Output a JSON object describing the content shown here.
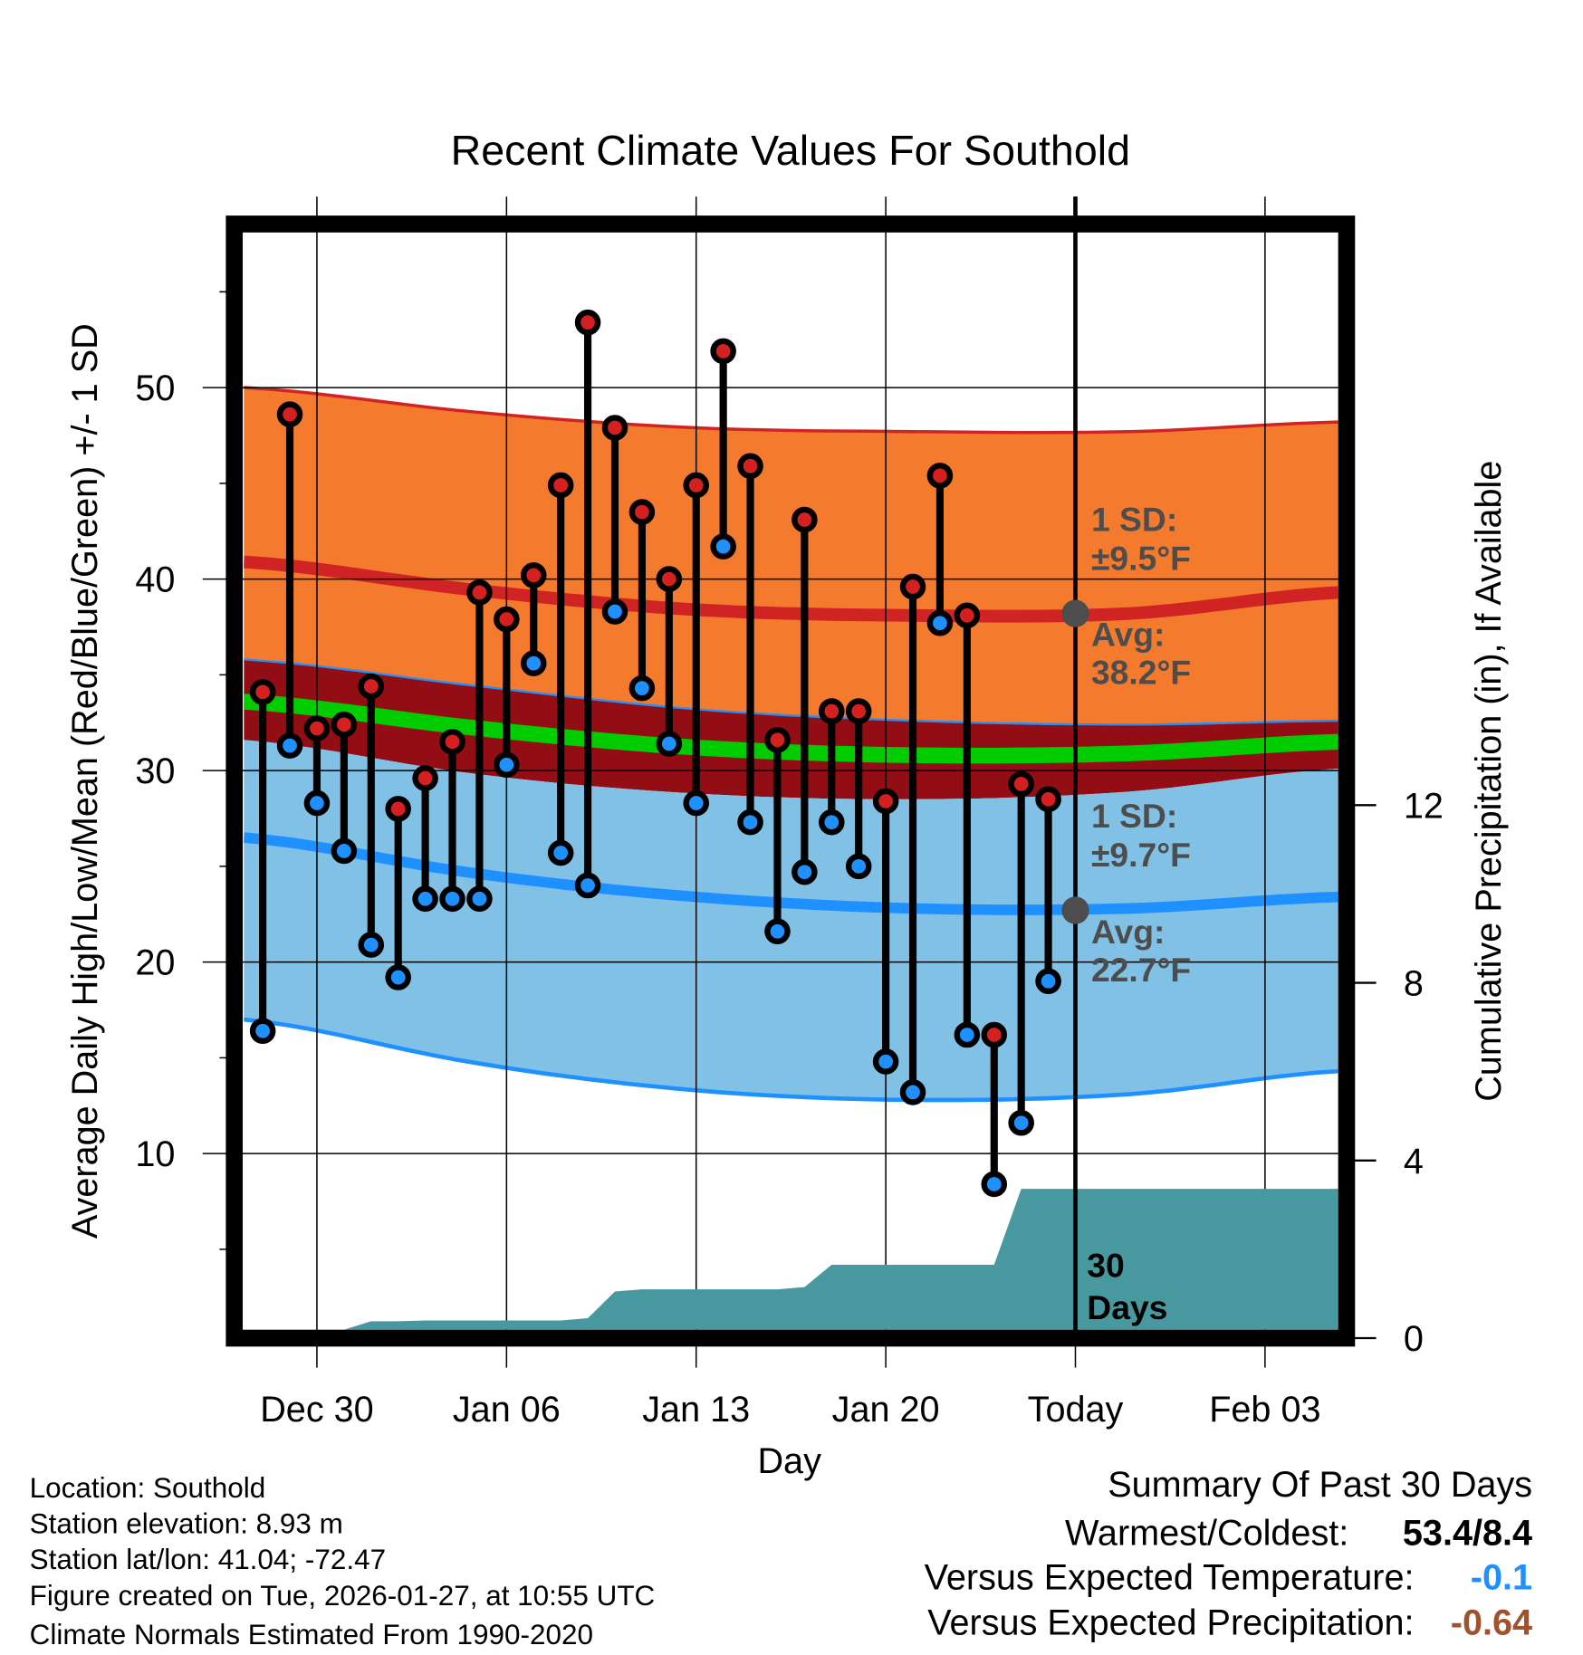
{
  "chart_data": {
    "type": "line",
    "title": "Recent Climate Values For Southold",
    "xlabel": "Day",
    "ylabel": "Average Daily High/Low/Mean (Red/Blue/Green) +/- 1 SD",
    "y2label": "Cumulative Precipitation (in), If Available",
    "ylim": [
      0.8,
      58.1
    ],
    "y2lim": [
      0.19,
      24.9
    ],
    "xlim_days_from_dec30": [
      -2.7,
      37.7
    ],
    "yticks": [
      "10",
      "20",
      "30",
      "40",
      "50"
    ],
    "y2ticks": [
      "0",
      "4",
      "8",
      "12"
    ],
    "xticks": [
      {
        "day": 0,
        "label": "Dec 30"
      },
      {
        "day": 7,
        "label": "Jan 06"
      },
      {
        "day": 14,
        "label": "Jan 13"
      },
      {
        "day": 21,
        "label": "Jan 20"
      },
      {
        "day": 28,
        "label": "Today"
      },
      {
        "day": 35,
        "label": "Feb 03"
      }
    ],
    "grid": true,
    "observations": {
      "days_from_dec30": [
        -2,
        -1,
        0,
        1,
        2,
        3,
        4,
        5,
        6,
        7,
        8,
        9,
        10,
        11,
        12,
        13,
        14,
        15,
        16,
        17,
        18,
        19,
        20,
        21,
        22,
        23,
        24,
        25,
        26,
        27
      ],
      "high": [
        34.1,
        48.6,
        32.2,
        32.4,
        34.4,
        28.0,
        29.6,
        31.5,
        39.3,
        37.9,
        40.2,
        44.9,
        53.4,
        47.9,
        43.5,
        40.0,
        44.9,
        51.9,
        45.9,
        31.6,
        43.1,
        33.1,
        33.1,
        28.4,
        39.6,
        45.4,
        38.1,
        16.2,
        29.3,
        28.5
      ],
      "low": [
        16.4,
        31.3,
        28.3,
        25.8,
        20.9,
        19.2,
        23.3,
        23.3,
        23.3,
        30.3,
        35.6,
        25.7,
        24.0,
        38.3,
        34.3,
        31.4,
        28.3,
        41.7,
        27.3,
        21.6,
        24.7,
        27.3,
        25.0,
        14.8,
        13.2,
        37.7,
        16.2,
        8.4,
        11.6,
        19.0
      ],
      "cumulative_precip_in": [
        0,
        0,
        0,
        0,
        0.38,
        0.38,
        0.4,
        0.4,
        0.4,
        0.4,
        0.4,
        0.4,
        0.45,
        1.05,
        1.1,
        1.1,
        1.1,
        1.1,
        1.1,
        1.1,
        1.15,
        1.65,
        1.65,
        1.65,
        1.65,
        1.65,
        1.65,
        1.65,
        3.36,
        3.36
      ],
      "precip_extends_to_day": 37.7
    },
    "normals": {
      "days_from_dec30": [
        -2.7,
        6,
        14,
        22,
        30,
        37.7
      ],
      "high_plus_sd": [
        50.0,
        48.7,
        47.9,
        47.7,
        47.7,
        48.2
      ],
      "avg_high": [
        40.9,
        39.4,
        38.4,
        38.1,
        38.2,
        39.3
      ],
      "high_minus_sd_band": [
        35.8,
        34.4,
        33.2,
        32.6,
        32.4,
        32.6
      ],
      "mean": [
        33.6,
        32.2,
        31.2,
        30.8,
        30.9,
        31.5
      ],
      "low_plus_sd_band": [
        31.6,
        29.8,
        28.8,
        28.5,
        28.9,
        30.1
      ],
      "avg_low": [
        26.5,
        24.6,
        23.4,
        22.8,
        22.8,
        23.4
      ],
      "low_minus_sd": [
        17.0,
        14.7,
        13.3,
        12.8,
        13.1,
        14.3
      ]
    },
    "today": {
      "day": 28,
      "avg_high": 38.2,
      "avg_low": 22.7
    },
    "annotations": {
      "high_sd_line1": "1 SD:",
      "high_sd_line2": "±9.5°F",
      "high_avg_line1": "Avg:",
      "high_avg_line2": "38.2°F",
      "low_sd_line1": "1 SD:",
      "low_sd_line2": "±9.7°F",
      "low_avg_line1": "Avg:",
      "low_avg_line2": "22.7°F",
      "days_line1": "30",
      "days_line2": "Days"
    },
    "colors": {
      "orange": "#f47b2e",
      "dark_red": "#920d14",
      "light_blue": "#82c1e6",
      "green": "#00cc00",
      "red_line": "#d02424",
      "blue_line": "#1e90ff",
      "precip": "#48999f",
      "high_dot": "#d42020",
      "low_dot": "#1e90ff",
      "today_dot": "#4d4d4d"
    }
  },
  "info": {
    "location": "Location: Southold",
    "elevation": "Station elevation: 8.93 m",
    "latlon": "Station lat/lon: 41.04; -72.47",
    "created": "Figure created on Tue, 2026-01-27, at 10:55 UTC",
    "normals": "Climate Normals Estimated From 1990-2020"
  },
  "summary": {
    "title": "Summary Of Past 30 Days",
    "warmest_label": "Warmest/Coldest:",
    "warmest_value": "53.4/8.4",
    "temp_label": "Versus Expected Temperature:",
    "temp_value": "-0.1",
    "temp_color": "#1e90ff",
    "precip_label": "Versus Expected Precipitation:",
    "precip_value": "-0.64",
    "precip_color": "#a0522d"
  }
}
